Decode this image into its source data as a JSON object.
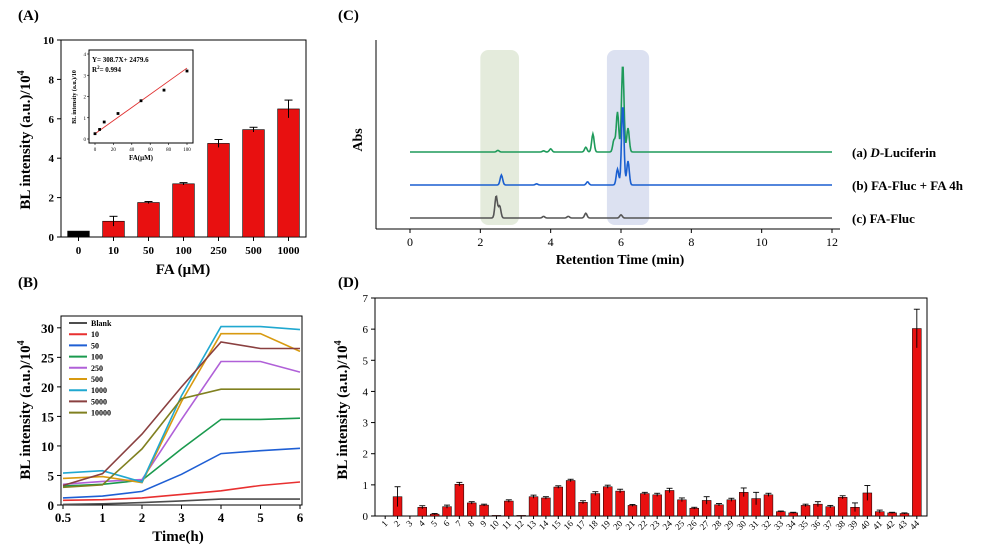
{
  "panels": {
    "a": {
      "label": "(A)",
      "ylabel": "BL intensity (a.u.)/10",
      "ylabel_exp": "4",
      "xlabel": "FA (μM)"
    },
    "b": {
      "label": "(B)",
      "ylabel": "BL intensity (a.u.)/10",
      "ylabel_exp": "4",
      "xlabel": "Time(h)"
    },
    "c": {
      "label": "(C)",
      "ylabel": "Abs",
      "xlabel": "Retention Time (min)"
    },
    "d": {
      "label": "(D)",
      "ylabel": "BL intensity (a.u.)/10",
      "ylabel_exp": "4"
    }
  },
  "inset": {
    "equation": "Y= 308.7X+ 2479.6",
    "r2_prefix": "R",
    "r2_exp": "2",
    "r2_value": "= 0.994",
    "xlabel": "FA(μM)",
    "ylabel": "BL intensity (a.u.)/10"
  },
  "colors": {
    "bar": "#e81010",
    "blank": "#000000",
    "fit": "#e03030",
    "green_band": "#dfe8d6",
    "blue_band": "#d6dcef"
  },
  "chart_data": [
    {
      "type": "bar",
      "panel": "A",
      "categories": [
        "0",
        "10",
        "50",
        "100",
        "250",
        "500",
        "1000"
      ],
      "values": [
        0.3,
        0.8,
        1.75,
        2.7,
        4.75,
        5.45,
        6.5
      ],
      "errors": [
        0.02,
        0.25,
        0.05,
        0.06,
        0.2,
        0.12,
        0.45
      ],
      "colors": [
        "#000000",
        "#e81010",
        "#e81010",
        "#e81010",
        "#e81010",
        "#e81010",
        "#e81010"
      ],
      "ylim": [
        0,
        10
      ],
      "yticks": [
        0,
        2,
        4,
        6,
        8,
        10
      ]
    },
    {
      "type": "scatter",
      "panel": "A-inset",
      "x": [
        0,
        5,
        10,
        25,
        50,
        75,
        100
      ],
      "y": [
        0.25,
        0.45,
        0.8,
        1.2,
        1.8,
        2.3,
        3.2
      ],
      "fit": {
        "slope": 0.0309,
        "intercept": 0.248
      },
      "xlim": [
        0,
        100
      ],
      "ylim": [
        0,
        4
      ],
      "xticks": [
        0,
        20,
        40,
        60,
        80,
        100
      ],
      "yticks": [
        0,
        1,
        2,
        3,
        4
      ]
    },
    {
      "type": "line",
      "panel": "B",
      "x": [
        0.5,
        1,
        2,
        3,
        4,
        5,
        6
      ],
      "xticks": [
        "0.5",
        "1",
        "2",
        "3",
        "4",
        "5",
        "6"
      ],
      "ylim": [
        0,
        32
      ],
      "yticks": [
        0,
        5,
        10,
        15,
        20,
        25,
        30
      ],
      "series": [
        {
          "name": "Blank",
          "color": "#4d4d4d",
          "values": [
            0.1,
            0.2,
            0.4,
            0.7,
            1.0,
            1.0,
            1.0
          ]
        },
        {
          "name": "10",
          "color": "#e83030",
          "values": [
            0.8,
            0.9,
            1.2,
            1.8,
            2.4,
            3.3,
            3.9
          ]
        },
        {
          "name": "50",
          "color": "#1f5fd4",
          "values": [
            1.2,
            1.5,
            2.3,
            5.2,
            8.7,
            9.2,
            9.6
          ]
        },
        {
          "name": "100",
          "color": "#1a9a4e",
          "values": [
            3.2,
            3.5,
            4.2,
            9.5,
            14.5,
            14.5,
            14.7
          ]
        },
        {
          "name": "250",
          "color": "#b060d8",
          "values": [
            3.5,
            4.0,
            4.3,
            14.5,
            24.3,
            24.3,
            22.5
          ]
        },
        {
          "name": "500",
          "color": "#d89a10",
          "values": [
            4.5,
            4.8,
            3.8,
            17.5,
            29.0,
            29.0,
            26.0
          ]
        },
        {
          "name": "1000",
          "color": "#20a8d0",
          "values": [
            5.4,
            5.8,
            3.9,
            18.5,
            30.2,
            30.2,
            29.7
          ]
        },
        {
          "name": "5000",
          "color": "#8a4040",
          "values": [
            3.3,
            5.3,
            12.0,
            20.0,
            27.6,
            26.5,
            26.5
          ]
        },
        {
          "name": "10000",
          "color": "#808020",
          "values": [
            3.0,
            3.4,
            9.5,
            18.0,
            19.6,
            19.6,
            19.6
          ]
        }
      ]
    },
    {
      "type": "line",
      "panel": "C",
      "xlim": [
        0,
        12
      ],
      "xticks": [
        0,
        2,
        4,
        6,
        8,
        10,
        12
      ],
      "highlight_bands": [
        [
          2.0,
          3.1
        ],
        [
          5.6,
          6.8
        ]
      ],
      "series": [
        {
          "name": "(a) D-Luciferin",
          "label_prefix": "(a) ",
          "label_italic": "D",
          "label_rest": "-Luciferin",
          "color": "#1e9a5a",
          "baseline": 0,
          "peaks": [
            [
              2.5,
              0.4
            ],
            [
              3.8,
              0.3
            ],
            [
              4.0,
              0.8
            ],
            [
              5.0,
              1.2
            ],
            [
              5.2,
              4.5
            ],
            [
              5.8,
              3.0
            ],
            [
              5.9,
              10.0
            ],
            [
              6.05,
              22.0
            ],
            [
              6.2,
              6.0
            ]
          ]
        },
        {
          "name": "(b) FA-Fluc + FA  4h",
          "label_prefix": "(b) FA-Fluc + FA  4h",
          "label_italic": "",
          "label_rest": "",
          "color": "#1a5fd0",
          "baseline": 0,
          "peaks": [
            [
              2.6,
              2.5
            ],
            [
              3.6,
              0.3
            ],
            [
              5.05,
              0.8
            ],
            [
              5.9,
              4.0
            ],
            [
              6.05,
              20.0
            ],
            [
              6.2,
              6.0
            ]
          ]
        },
        {
          "name": "(c) FA-Fluc",
          "label_prefix": "(c) FA-Fluc",
          "label_italic": "",
          "label_rest": "",
          "color": "#555555",
          "baseline": 0,
          "peaks": [
            [
              2.45,
              5.5
            ],
            [
              2.55,
              3.0
            ],
            [
              3.8,
              0.4
            ],
            [
              4.5,
              0.4
            ],
            [
              5.0,
              1.2
            ],
            [
              6.0,
              0.8
            ]
          ]
        }
      ]
    },
    {
      "type": "bar",
      "panel": "D",
      "categories": [
        "1",
        "2",
        "3",
        "4",
        "5",
        "6",
        "7",
        "8",
        "9",
        "10",
        "11",
        "12",
        "13",
        "14",
        "15",
        "16",
        "17",
        "18",
        "19",
        "20",
        "21",
        "22",
        "23",
        "24",
        "25",
        "26",
        "27",
        "28",
        "29",
        "30",
        "31",
        "32",
        "33",
        "34",
        "35",
        "36",
        "37",
        "38",
        "39",
        "40",
        "41",
        "42",
        "43",
        "44"
      ],
      "values": [
        0.0,
        0.62,
        0.0,
        0.28,
        0.06,
        0.3,
        1.02,
        0.42,
        0.35,
        0.02,
        0.48,
        0.02,
        0.62,
        0.58,
        0.93,
        1.14,
        0.44,
        0.72,
        0.94,
        0.8,
        0.34,
        0.72,
        0.68,
        0.82,
        0.52,
        0.25,
        0.5,
        0.36,
        0.52,
        0.76,
        0.56,
        0.68,
        0.14,
        0.1,
        0.34,
        0.38,
        0.3,
        0.6,
        0.28,
        0.74,
        0.14,
        0.1,
        0.08,
        6.02
      ],
      "errors": [
        0.0,
        0.32,
        0.0,
        0.05,
        0.02,
        0.05,
        0.06,
        0.04,
        0.03,
        0.01,
        0.04,
        0.01,
        0.05,
        0.04,
        0.04,
        0.04,
        0.05,
        0.06,
        0.05,
        0.06,
        0.03,
        0.04,
        0.05,
        0.07,
        0.06,
        0.03,
        0.12,
        0.04,
        0.05,
        0.14,
        0.2,
        0.05,
        0.02,
        0.02,
        0.04,
        0.08,
        0.04,
        0.05,
        0.14,
        0.24,
        0.05,
        0.02,
        0.02,
        0.62
      ],
      "ylim": [
        0,
        7
      ],
      "yticks": [
        0,
        1,
        2,
        3,
        4,
        5,
        6,
        7
      ]
    }
  ]
}
